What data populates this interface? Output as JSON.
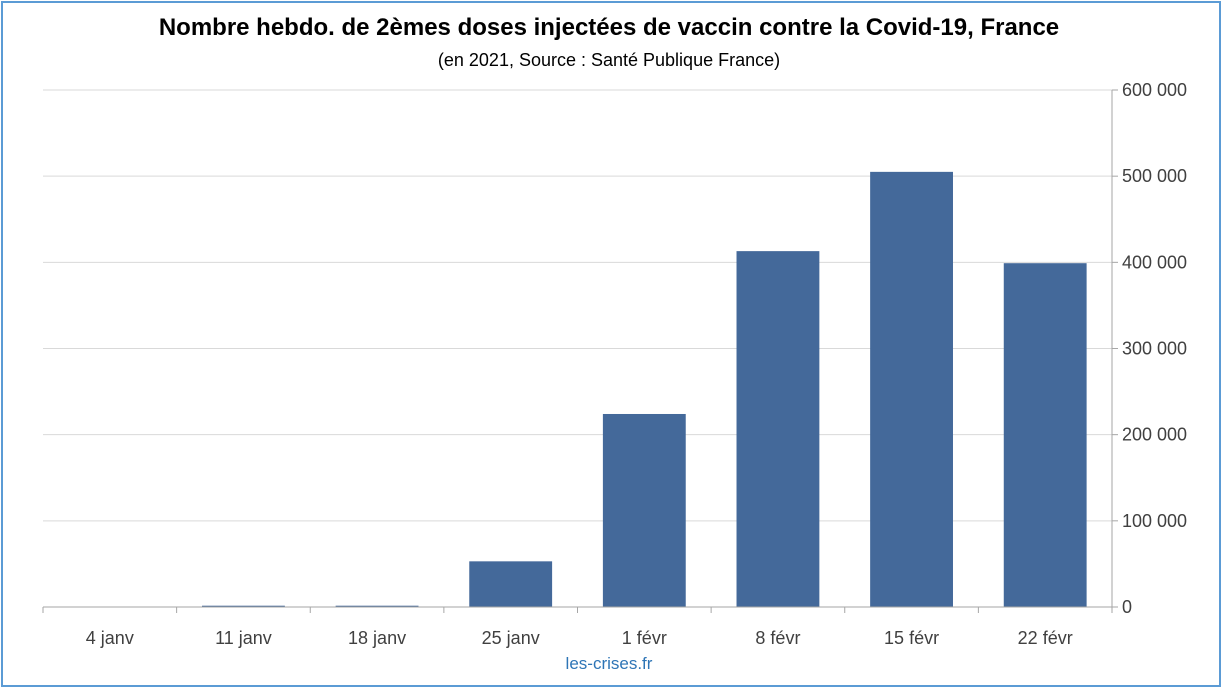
{
  "chart_data": {
    "type": "bar",
    "title": "Nombre hebdo. de 2èmes doses injectées de vaccin contre la Covid-19, France",
    "subtitle": "(en 2021, Source : Santé Publique France)",
    "categories": [
      "4 janv",
      "11 janv",
      "18 janv",
      "25 janv",
      "1 févr",
      "8 févr",
      "15 févr",
      "22 févr"
    ],
    "values": [
      0,
      1500,
      1500,
      53000,
      224000,
      413000,
      505000,
      399000
    ],
    "ylim": [
      0,
      600000
    ],
    "yticks": [
      0,
      100000,
      200000,
      300000,
      400000,
      500000,
      600000
    ],
    "ytick_labels": [
      "0",
      "100 000",
      "200 000",
      "300 000",
      "400 000",
      "500 000",
      "600 000"
    ],
    "y_axis_side": "right",
    "grid": true,
    "bar_color": "#44699a",
    "grid_color": "#d9d9d9",
    "axis_color": "#a6a6a6",
    "frame_color": "#5b9bd5"
  },
  "footer": {
    "credit": "les-crises.fr"
  }
}
